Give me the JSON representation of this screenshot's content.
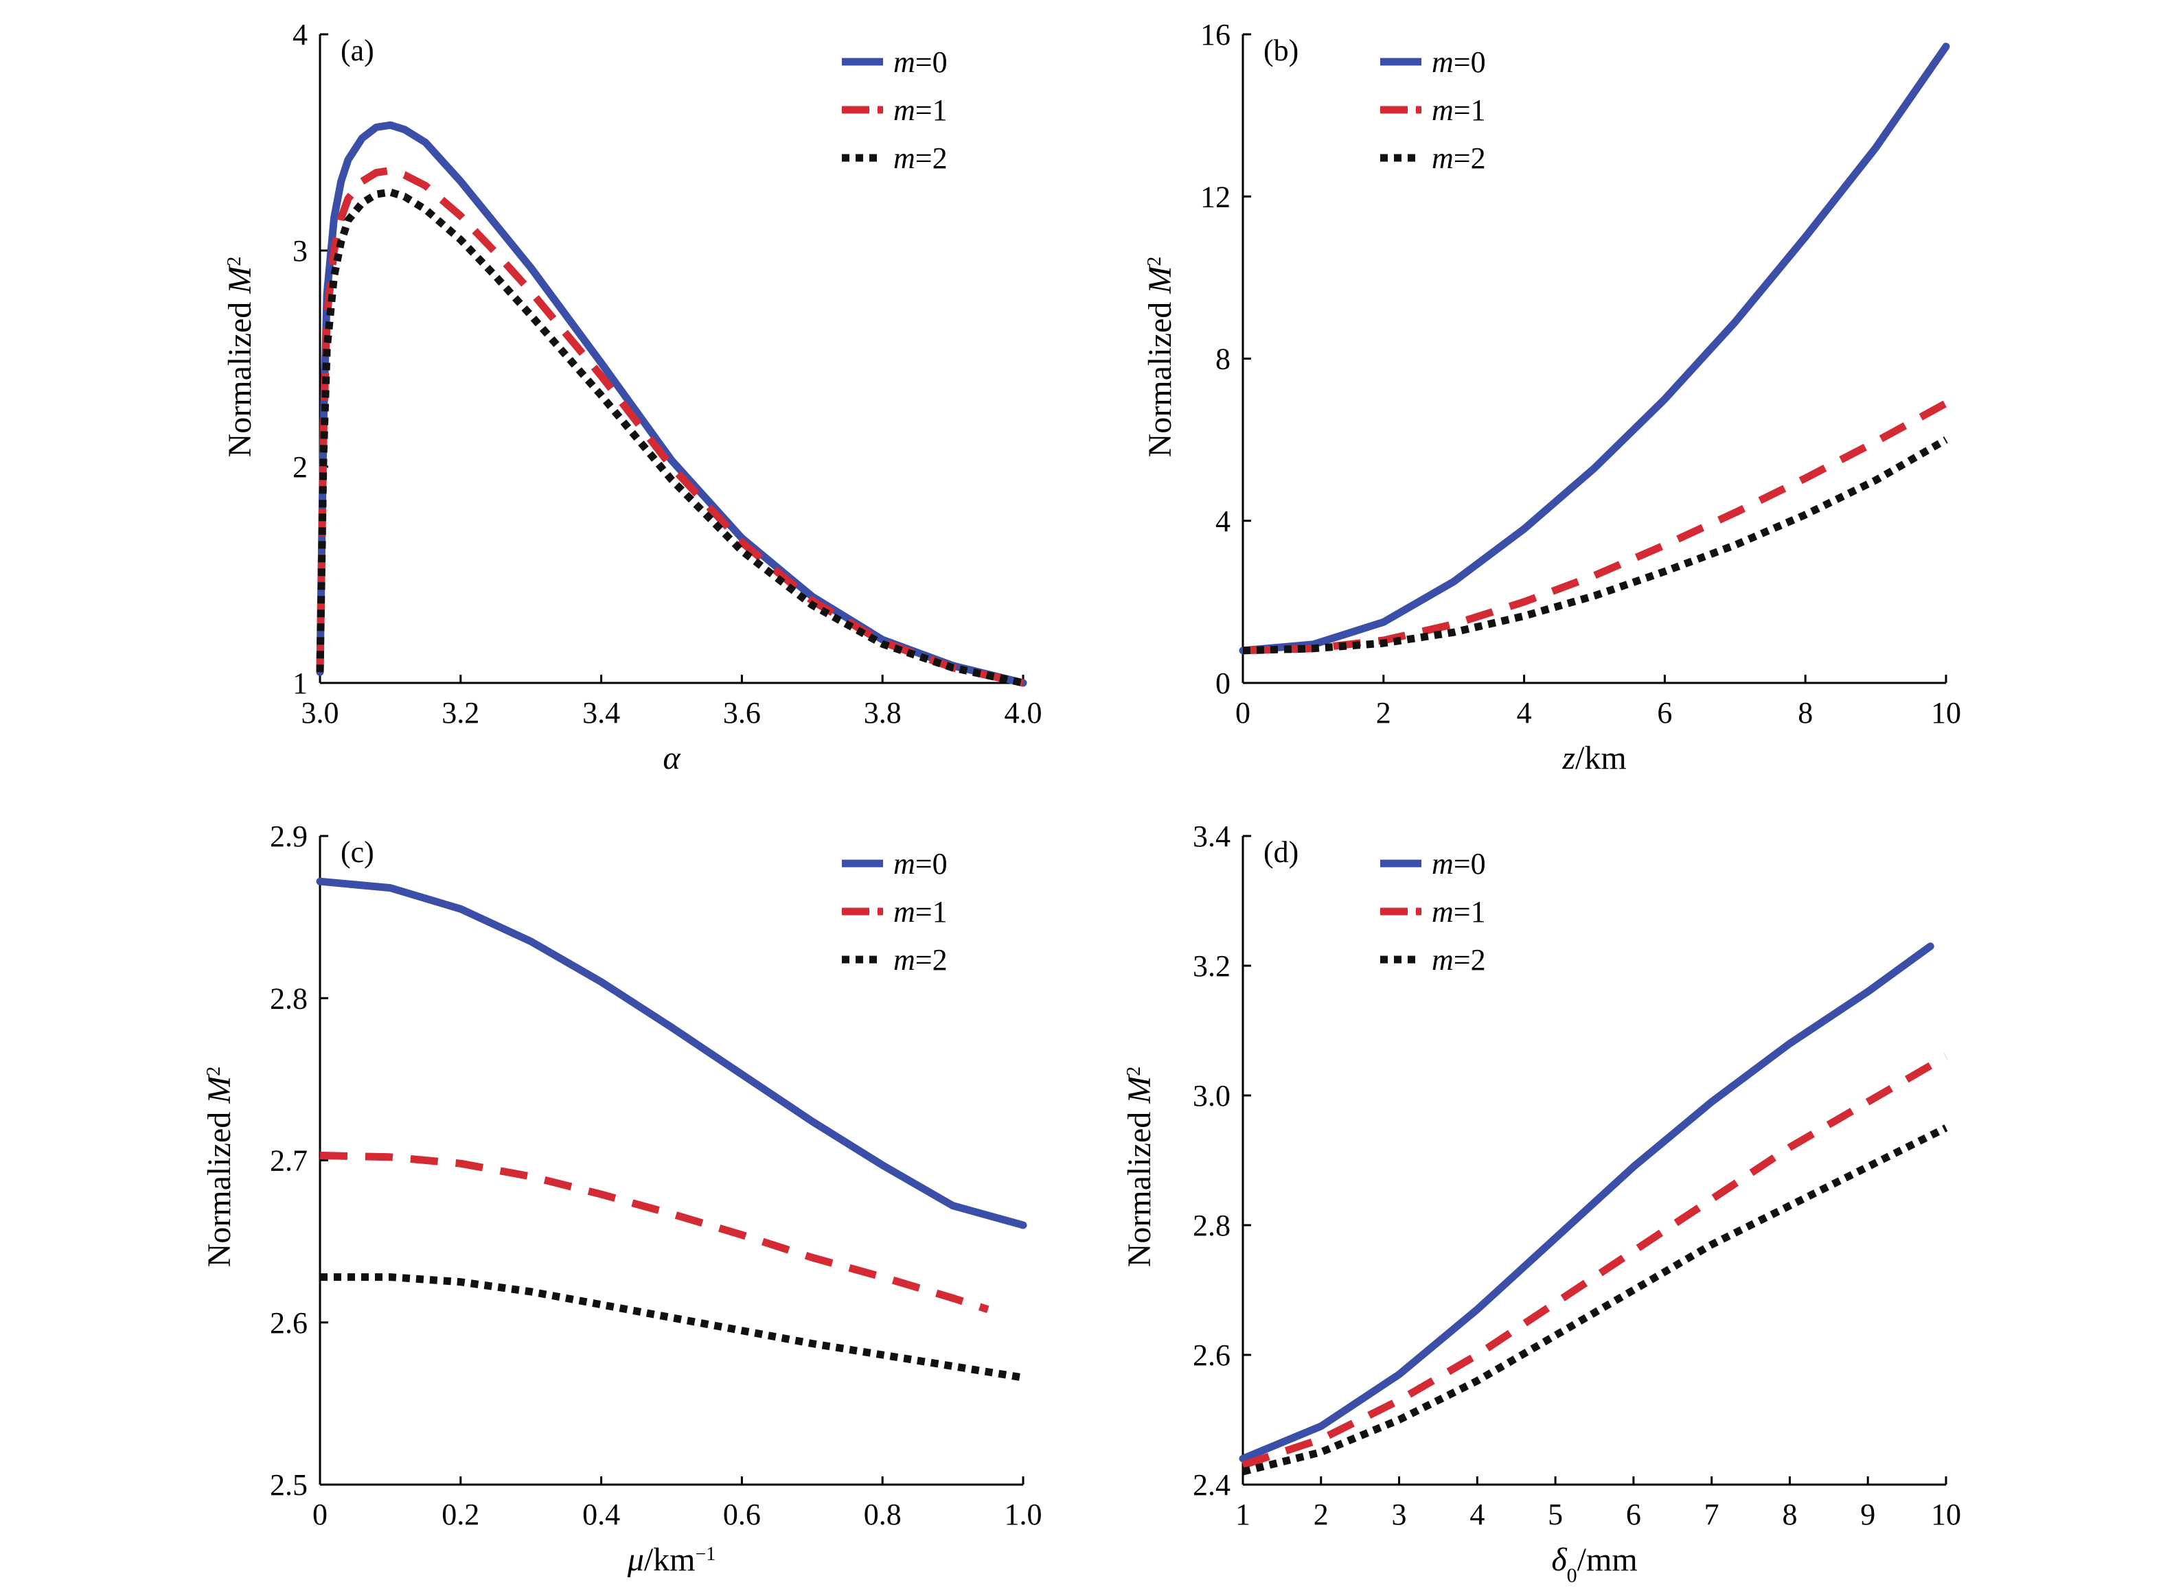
{
  "colors": {
    "m0": "#3b4fa8",
    "m1": "#d42a34",
    "m2": "#111111"
  },
  "chart_data": [
    {
      "panel": "(a)",
      "type": "line",
      "xlabel": "α",
      "ylabel": "Normalized M²",
      "xlim": [
        3.0,
        4.0
      ],
      "ylim": [
        1,
        4
      ],
      "xticks": [
        3.0,
        3.2,
        3.4,
        3.6,
        3.8,
        4.0
      ],
      "xtick_labels": [
        "3.0",
        "3.2",
        "3.4",
        "3.6",
        "3.8",
        "4.0"
      ],
      "yticks": [
        1,
        2,
        3,
        4
      ],
      "ytick_labels": [
        "1",
        "2",
        "3",
        "4"
      ],
      "legend_position": "top-right",
      "series": [
        {
          "name": "m=0",
          "color": "#3b4fa8",
          "style": "solid",
          "x": [
            3.0,
            3.005,
            3.01,
            3.02,
            3.03,
            3.04,
            3.06,
            3.08,
            3.1,
            3.12,
            3.15,
            3.2,
            3.25,
            3.3,
            3.4,
            3.5,
            3.6,
            3.7,
            3.8,
            3.9,
            4.0
          ],
          "y": [
            1.05,
            2.2,
            2.8,
            3.15,
            3.32,
            3.42,
            3.52,
            3.57,
            3.58,
            3.56,
            3.5,
            3.32,
            3.12,
            2.92,
            2.48,
            2.03,
            1.67,
            1.4,
            1.2,
            1.08,
            1.0
          ]
        },
        {
          "name": "m=1",
          "color": "#d42a34",
          "style": "dashed",
          "x": [
            3.0,
            3.005,
            3.01,
            3.02,
            3.03,
            3.04,
            3.06,
            3.08,
            3.1,
            3.12,
            3.15,
            3.2,
            3.25,
            3.3,
            3.4,
            3.5,
            3.6,
            3.7,
            3.8,
            3.9,
            4.0
          ],
          "y": [
            1.05,
            2.15,
            2.7,
            3.0,
            3.15,
            3.24,
            3.32,
            3.36,
            3.37,
            3.35,
            3.3,
            3.16,
            2.99,
            2.81,
            2.42,
            2.0,
            1.65,
            1.38,
            1.19,
            1.07,
            1.0
          ]
        },
        {
          "name": "m=2",
          "color": "#111111",
          "style": "dotted",
          "x": [
            3.0,
            3.005,
            3.01,
            3.02,
            3.03,
            3.04,
            3.06,
            3.08,
            3.1,
            3.12,
            3.15,
            3.2,
            3.25,
            3.3,
            3.4,
            3.5,
            3.6,
            3.7,
            3.8,
            3.9,
            4.0
          ],
          "y": [
            1.05,
            2.05,
            2.55,
            2.88,
            3.04,
            3.14,
            3.22,
            3.26,
            3.27,
            3.25,
            3.19,
            3.05,
            2.88,
            2.7,
            2.33,
            1.94,
            1.61,
            1.36,
            1.18,
            1.07,
            1.0
          ]
        }
      ]
    },
    {
      "panel": "(b)",
      "type": "line",
      "xlabel": "z/km",
      "ylabel": "Normalized M²",
      "xlim": [
        0,
        10
      ],
      "ylim": [
        0,
        16
      ],
      "xticks": [
        0,
        2,
        4,
        6,
        8,
        10
      ],
      "xtick_labels": [
        "0",
        "2",
        "4",
        "6",
        "8",
        "10"
      ],
      "yticks": [
        0,
        4,
        8,
        12,
        16
      ],
      "ytick_labels": [
        "0",
        "4",
        "8",
        "12",
        "16"
      ],
      "legend_position": "top-left",
      "series": [
        {
          "name": "m=0",
          "color": "#3b4fa8",
          "style": "solid",
          "x": [
            0,
            1,
            2,
            3,
            4,
            5,
            6,
            7,
            8,
            9,
            10
          ],
          "y": [
            0.8,
            0.95,
            1.5,
            2.5,
            3.8,
            5.3,
            7.0,
            8.9,
            11.0,
            13.2,
            15.7
          ]
        },
        {
          "name": "m=1",
          "color": "#d42a34",
          "style": "dashed",
          "x": [
            0,
            1,
            2,
            3,
            4,
            5,
            6,
            7,
            8,
            9,
            10
          ],
          "y": [
            0.8,
            0.85,
            1.05,
            1.45,
            2.0,
            2.65,
            3.4,
            4.2,
            5.05,
            5.95,
            6.9
          ]
        },
        {
          "name": "m=2",
          "color": "#111111",
          "style": "dotted",
          "x": [
            0,
            1,
            2,
            3,
            4,
            5,
            6,
            7,
            8,
            9,
            10
          ],
          "y": [
            0.8,
            0.85,
            0.98,
            1.25,
            1.65,
            2.15,
            2.75,
            3.4,
            4.15,
            5.0,
            6.0
          ]
        }
      ]
    },
    {
      "panel": "(c)",
      "type": "line",
      "xlabel": "μ/km⁻¹",
      "ylabel": "Normalized M²",
      "xlim": [
        0,
        1.0
      ],
      "ylim": [
        2.5,
        2.9
      ],
      "xticks": [
        0,
        0.2,
        0.4,
        0.6,
        0.8,
        1.0
      ],
      "xtick_labels": [
        "0",
        "0.2",
        "0.4",
        "0.6",
        "0.8",
        "1.0"
      ],
      "yticks": [
        2.5,
        2.6,
        2.7,
        2.8,
        2.9
      ],
      "ytick_labels": [
        "2.5",
        "2.6",
        "2.7",
        "2.8",
        "2.9"
      ],
      "legend_position": "top-right",
      "series": [
        {
          "name": "m=0",
          "color": "#3b4fa8",
          "style": "solid",
          "x": [
            0,
            0.1,
            0.2,
            0.3,
            0.4,
            0.5,
            0.6,
            0.7,
            0.8,
            0.9,
            1.0
          ],
          "y": [
            2.872,
            2.868,
            2.855,
            2.835,
            2.81,
            2.782,
            2.753,
            2.724,
            2.697,
            2.672,
            2.66
          ]
        },
        {
          "name": "m=1",
          "color": "#d42a34",
          "style": "dashed",
          "x": [
            0,
            0.1,
            0.2,
            0.3,
            0.4,
            0.5,
            0.6,
            0.7,
            0.8,
            0.9,
            0.95
          ],
          "y": [
            2.703,
            2.702,
            2.698,
            2.69,
            2.679,
            2.667,
            2.654,
            2.64,
            2.628,
            2.615,
            2.608
          ]
        },
        {
          "name": "m=2",
          "color": "#111111",
          "style": "dotted",
          "x": [
            0,
            0.1,
            0.2,
            0.3,
            0.4,
            0.5,
            0.6,
            0.7,
            0.8,
            0.9,
            1.0
          ],
          "y": [
            2.628,
            2.628,
            2.625,
            2.619,
            2.611,
            2.603,
            2.595,
            2.587,
            2.58,
            2.573,
            2.566
          ]
        }
      ]
    },
    {
      "panel": "(d)",
      "type": "line",
      "xlabel": "δ0/mm",
      "ylabel": "Normalized M²",
      "xlim": [
        1,
        10
      ],
      "ylim": [
        2.4,
        3.4
      ],
      "xticks": [
        1,
        2,
        3,
        4,
        5,
        6,
        7,
        8,
        9,
        10
      ],
      "xtick_labels": [
        "1",
        "2",
        "3",
        "4",
        "5",
        "6",
        "7",
        "8",
        "9",
        "10"
      ],
      "yticks": [
        2.4,
        2.6,
        2.8,
        3.0,
        3.2,
        3.4
      ],
      "ytick_labels": [
        "2.4",
        "2.6",
        "2.8",
        "3.0",
        "3.2",
        "3.4"
      ],
      "legend_position": "top-left",
      "series": [
        {
          "name": "m=0",
          "color": "#3b4fa8",
          "style": "solid",
          "x": [
            1,
            2,
            3,
            4,
            5,
            6,
            7,
            8,
            9,
            9.8
          ],
          "y": [
            2.44,
            2.49,
            2.57,
            2.67,
            2.78,
            2.89,
            2.99,
            3.08,
            3.16,
            3.23
          ]
        },
        {
          "name": "m=1",
          "color": "#d42a34",
          "style": "dashed",
          "x": [
            1,
            2,
            3,
            4,
            5,
            6,
            7,
            8,
            9,
            10
          ],
          "y": [
            2.43,
            2.47,
            2.53,
            2.6,
            2.68,
            2.76,
            2.84,
            2.92,
            2.99,
            3.06
          ]
        },
        {
          "name": "m=2",
          "color": "#111111",
          "style": "dotted",
          "x": [
            1,
            2,
            3,
            4,
            5,
            6,
            7,
            8,
            9,
            10
          ],
          "y": [
            2.42,
            2.45,
            2.5,
            2.56,
            2.63,
            2.7,
            2.77,
            2.83,
            2.89,
            2.95
          ]
        }
      ]
    }
  ]
}
